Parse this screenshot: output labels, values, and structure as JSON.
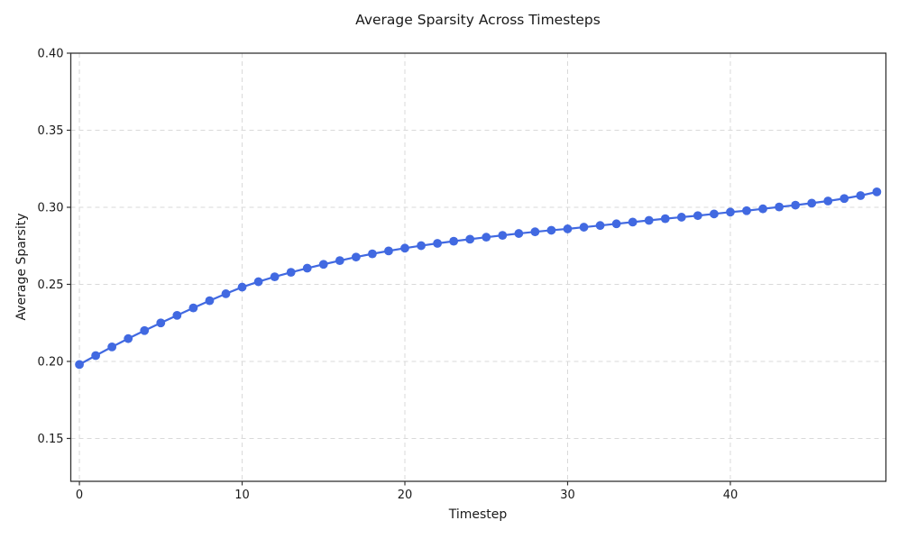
{
  "title": "Average Sparsity Across Timesteps",
  "chart_data": {
    "type": "line",
    "title": "Average Sparsity Across Timesteps",
    "xlabel": "Timestep",
    "ylabel": "Average Sparsity",
    "x": [
      0,
      1,
      2,
      3,
      4,
      5,
      6,
      7,
      8,
      9,
      10,
      11,
      12,
      13,
      14,
      15,
      16,
      17,
      18,
      19,
      20,
      21,
      22,
      23,
      24,
      25,
      26,
      27,
      28,
      29,
      30,
      31,
      32,
      33,
      34,
      35,
      36,
      37,
      38,
      39,
      40,
      41,
      42,
      43,
      44,
      45,
      46,
      47,
      48,
      49
    ],
    "y": [
      0.198,
      0.2038,
      0.2094,
      0.2148,
      0.22,
      0.225,
      0.2299,
      0.2347,
      0.2394,
      0.2439,
      0.2482,
      0.2517,
      0.2549,
      0.2578,
      0.2605,
      0.263,
      0.2654,
      0.2677,
      0.2698,
      0.2717,
      0.2735,
      0.2751,
      0.2766,
      0.278,
      0.2793,
      0.2806,
      0.2818,
      0.283,
      0.2841,
      0.2851,
      0.286,
      0.2871,
      0.2882,
      0.2893,
      0.2904,
      0.2915,
      0.2926,
      0.2936,
      0.2946,
      0.2957,
      0.2969,
      0.2978,
      0.299,
      0.3002,
      0.3014,
      0.3027,
      0.3041,
      0.3057,
      0.3076,
      0.31
    ],
    "series_name": "Average Sparsity",
    "marker": "circle",
    "line_color": "#4169E1",
    "grid": true,
    "grid_style": "dashed",
    "grid_color": "#d9d9d9",
    "spine_color": "#333333",
    "text_color": "#1a1a1a",
    "legend": null,
    "xlim": [
      -0.53,
      49.56
    ],
    "ylim": [
      0.1222,
      0.4
    ],
    "x_ticks": [
      0,
      10,
      20,
      30,
      40
    ],
    "y_ticks": [
      0.15,
      0.2,
      0.25,
      0.3,
      0.35,
      0.4
    ],
    "y_tick_decimals": 2
  }
}
